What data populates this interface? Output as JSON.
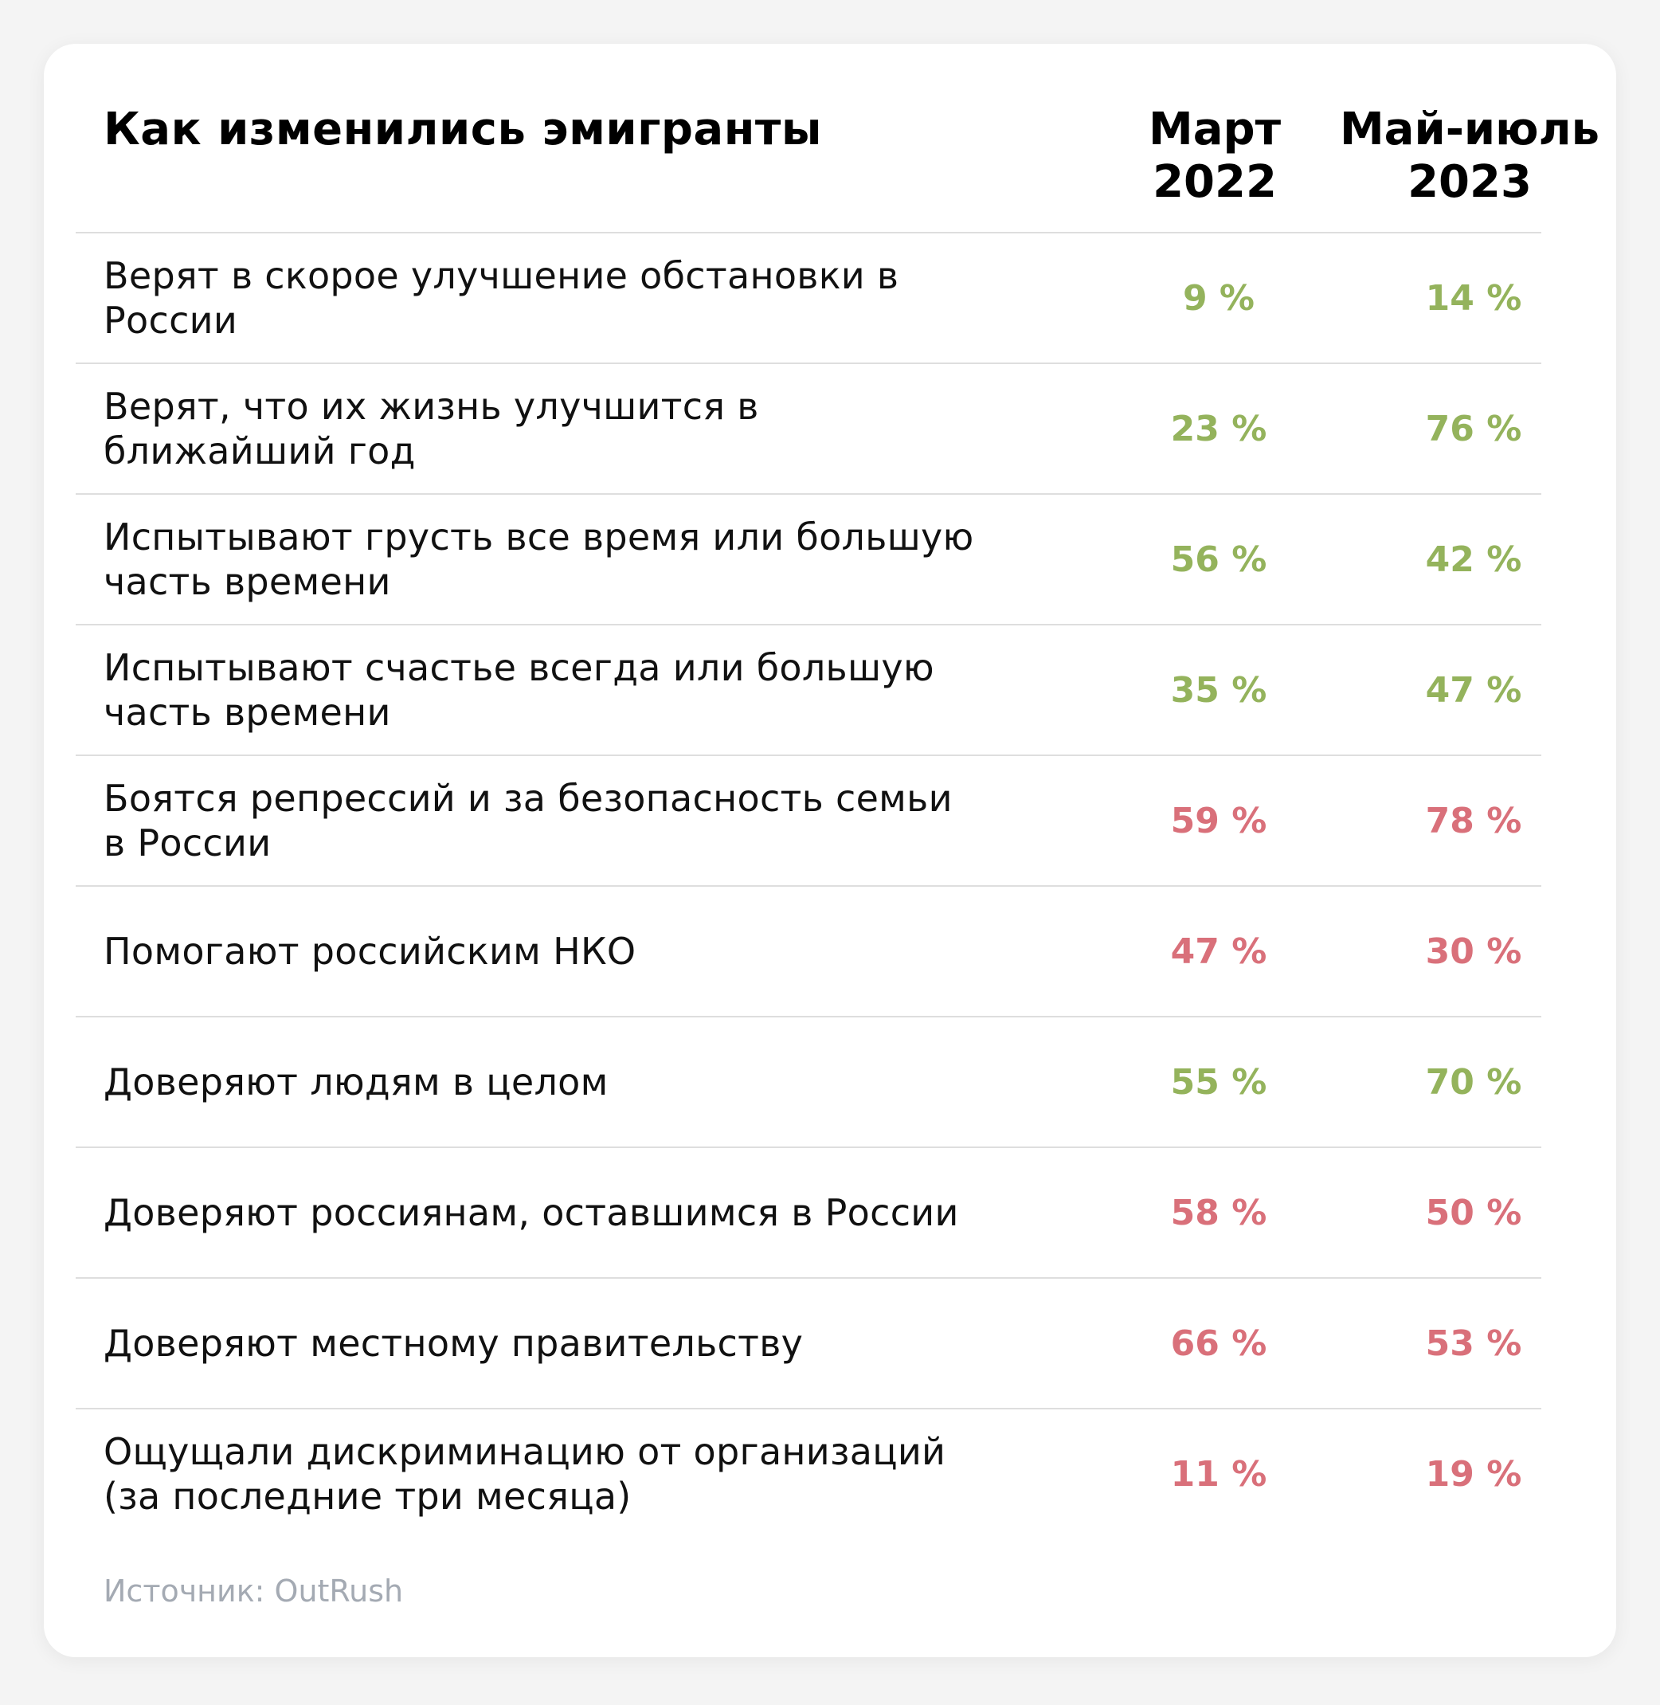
{
  "chart_data": {
    "type": "table",
    "title": "Как изменились эмигранты",
    "columns": [
      {
        "line1": "Март",
        "line2": "2022"
      },
      {
        "line1": "Май-июль",
        "line2": "2023"
      }
    ],
    "rows": [
      {
        "label_lines": [
          "Верят в скорое улучшение обстановки в России"
        ],
        "values": [
          "9 %",
          "14 %"
        ],
        "color": "#94b35c"
      },
      {
        "label_lines": [
          "Верят, что их жизнь улучшится в ближайший год"
        ],
        "values": [
          "23 %",
          "76 %"
        ],
        "color": "#94b35c"
      },
      {
        "label_lines": [
          "Испытывают грусть все время или большую",
          "часть времени"
        ],
        "values": [
          "56 %",
          "42 %"
        ],
        "color": "#94b35c"
      },
      {
        "label_lines": [
          "Испытывают счастье всегда или большую",
          "часть времени"
        ],
        "values": [
          "35 %",
          "47 %"
        ],
        "color": "#94b35c"
      },
      {
        "label_lines": [
          "Боятся репрессий и за безопасность семьи",
          "в России"
        ],
        "values": [
          "59 %",
          "78 %"
        ],
        "color": "#d9707a"
      },
      {
        "label_lines": [
          "Помогают российским НКО"
        ],
        "values": [
          "47 %",
          "30 %"
        ],
        "color": "#d9707a"
      },
      {
        "label_lines": [
          "Доверяют людям в целом"
        ],
        "values": [
          "55 %",
          "70 %"
        ],
        "color": "#94b35c"
      },
      {
        "label_lines": [
          "Доверяют россиянам, оставшимся в России"
        ],
        "values": [
          "58 %",
          "50 %"
        ],
        "color": "#d9707a"
      },
      {
        "label_lines": [
          "Доверяют местному правительству"
        ],
        "values": [
          "66 %",
          "53 %"
        ],
        "color": "#d9707a"
      },
      {
        "label_lines": [
          "Ощущали дискриминацию от организаций",
          "(за последние три месяца)"
        ],
        "values": [
          "11 %",
          "19 %"
        ],
        "color": "#d9707a"
      }
    ],
    "source": "Источник: OutRush"
  }
}
